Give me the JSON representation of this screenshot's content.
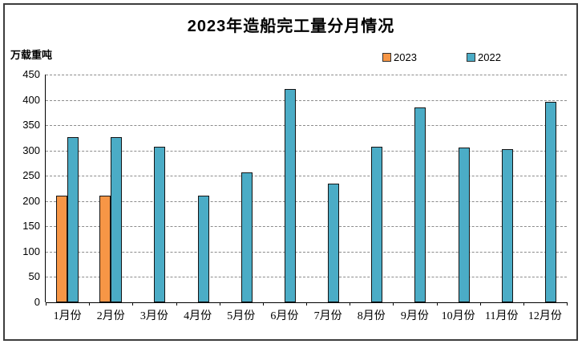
{
  "title": "2023年造船完工量分月情况",
  "y_axis_unit_label": "万载重吨",
  "legend": {
    "items": [
      {
        "label": "2023",
        "color": "#F79646"
      },
      {
        "label": "2022",
        "color": "#4BACC6"
      }
    ]
  },
  "y_axis_ticks": [
    "450",
    "400",
    "350",
    "300",
    "250",
    "200",
    "150",
    "100",
    "50",
    "0"
  ],
  "chart_data": {
    "type": "bar",
    "title": "2023年造船完工量分月情况",
    "ylabel": "万载重吨",
    "categories": [
      "1月份",
      "2月份",
      "3月份",
      "4月份",
      "5月份",
      "6月份",
      "7月份",
      "8月份",
      "9月份",
      "10月份",
      "11月份",
      "12月份"
    ],
    "series": [
      {
        "name": "2023",
        "color": "#F79646",
        "values": [
          211,
          211,
          null,
          null,
          null,
          null,
          null,
          null,
          null,
          null,
          null,
          null
        ]
      },
      {
        "name": "2022",
        "color": "#4BACC6",
        "values": [
          326,
          326,
          308,
          210,
          257,
          422,
          235,
          308,
          385,
          306,
          302,
          396
        ]
      }
    ],
    "ylim": [
      0,
      450
    ],
    "ytick_step": 50,
    "grid": "horizontal-dashed",
    "legend_position": "top-right",
    "bar_border_color": "#141414"
  }
}
